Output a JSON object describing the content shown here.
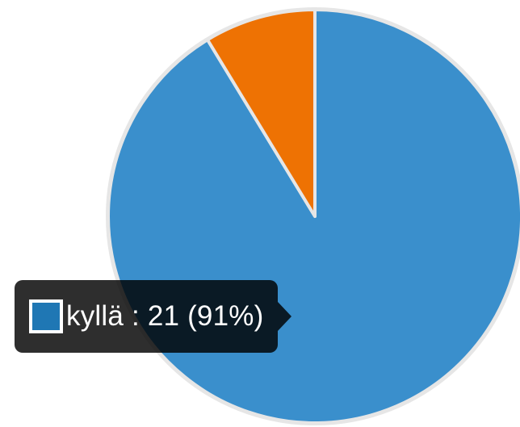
{
  "chart_data": {
    "type": "pie",
    "slices": [
      {
        "label": "kyllä",
        "value": 21,
        "percent": 91,
        "color": "#3a8fcc"
      },
      {
        "label": "",
        "value": 2,
        "percent": 9,
        "color": "#ee7203"
      }
    ],
    "start_angle_deg": 0,
    "direction": "clockwise",
    "slice_border_color": "#e6e6e6"
  },
  "tooltip": {
    "series_label": "kyllä",
    "separator": " : ",
    "value_text": "21 (91%)",
    "swatch_color": "#1f77b4"
  }
}
